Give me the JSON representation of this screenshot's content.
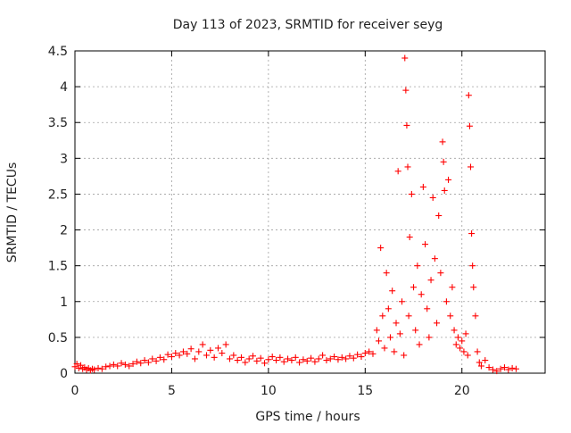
{
  "chart_data": {
    "type": "scatter",
    "title": "Day 113 of 2023, SRMTID for receiver seyg",
    "xlabel": "GPS time / hours",
    "ylabel": "SRMTID / TECUs",
    "xlim": [
      0,
      24.3
    ],
    "ylim": [
      0,
      4.5
    ],
    "grid": true,
    "marker": "+",
    "marker_color": "#ff0000",
    "xticks": [
      0,
      5,
      10,
      15,
      20
    ],
    "xtick_labels": [
      "0",
      "5",
      "10",
      "15",
      "20"
    ],
    "yticks": [
      0,
      0.5,
      1,
      1.5,
      2,
      2.5,
      3,
      3.5,
      4,
      4.5
    ],
    "ytick_labels": [
      "0",
      "0.5",
      "1",
      "1.5",
      "2",
      "2.5",
      "3",
      "3.5",
      "4",
      "4.5"
    ],
    "series": [
      {
        "name": "SRMTID",
        "points": [
          [
            0.0,
            0.09
          ],
          [
            0.1,
            0.13
          ],
          [
            0.2,
            0.07
          ],
          [
            0.3,
            0.11
          ],
          [
            0.4,
            0.06
          ],
          [
            0.5,
            0.08
          ],
          [
            0.6,
            0.05
          ],
          [
            0.7,
            0.07
          ],
          [
            0.8,
            0.04
          ],
          [
            0.9,
            0.06
          ],
          [
            1.0,
            0.05
          ],
          [
            1.2,
            0.07
          ],
          [
            1.4,
            0.06
          ],
          [
            1.6,
            0.09
          ],
          [
            1.8,
            0.1
          ],
          [
            2.0,
            0.12
          ],
          [
            2.2,
            0.1
          ],
          [
            2.4,
            0.14
          ],
          [
            2.6,
            0.12
          ],
          [
            2.8,
            0.1
          ],
          [
            3.0,
            0.13
          ],
          [
            3.2,
            0.16
          ],
          [
            3.4,
            0.14
          ],
          [
            3.6,
            0.18
          ],
          [
            3.8,
            0.15
          ],
          [
            4.0,
            0.2
          ],
          [
            4.2,
            0.17
          ],
          [
            4.4,
            0.22
          ],
          [
            4.6,
            0.19
          ],
          [
            4.8,
            0.26
          ],
          [
            5.0,
            0.23
          ],
          [
            5.2,
            0.28
          ],
          [
            5.4,
            0.25
          ],
          [
            5.6,
            0.3
          ],
          [
            5.8,
            0.27
          ],
          [
            6.0,
            0.34
          ],
          [
            6.2,
            0.2
          ],
          [
            6.4,
            0.3
          ],
          [
            6.6,
            0.4
          ],
          [
            6.8,
            0.25
          ],
          [
            7.0,
            0.32
          ],
          [
            7.2,
            0.22
          ],
          [
            7.4,
            0.35
          ],
          [
            7.6,
            0.28
          ],
          [
            7.8,
            0.4
          ],
          [
            8.0,
            0.2
          ],
          [
            8.2,
            0.25
          ],
          [
            8.4,
            0.18
          ],
          [
            8.6,
            0.22
          ],
          [
            8.8,
            0.15
          ],
          [
            9.0,
            0.2
          ],
          [
            9.2,
            0.24
          ],
          [
            9.4,
            0.17
          ],
          [
            9.6,
            0.21
          ],
          [
            9.8,
            0.14
          ],
          [
            10.0,
            0.19
          ],
          [
            10.2,
            0.23
          ],
          [
            10.4,
            0.18
          ],
          [
            10.6,
            0.22
          ],
          [
            10.8,
            0.16
          ],
          [
            11.0,
            0.2
          ],
          [
            11.2,
            0.18
          ],
          [
            11.4,
            0.22
          ],
          [
            11.6,
            0.15
          ],
          [
            11.8,
            0.19
          ],
          [
            12.0,
            0.17
          ],
          [
            12.2,
            0.21
          ],
          [
            12.4,
            0.16
          ],
          [
            12.6,
            0.2
          ],
          [
            12.8,
            0.25
          ],
          [
            13.0,
            0.18
          ],
          [
            13.2,
            0.2
          ],
          [
            13.4,
            0.23
          ],
          [
            13.6,
            0.19
          ],
          [
            13.8,
            0.22
          ],
          [
            14.0,
            0.2
          ],
          [
            14.2,
            0.24
          ],
          [
            14.4,
            0.21
          ],
          [
            14.6,
            0.26
          ],
          [
            14.8,
            0.23
          ],
          [
            15.0,
            0.28
          ],
          [
            15.2,
            0.3
          ],
          [
            15.4,
            0.27
          ],
          [
            15.6,
            0.6
          ],
          [
            15.7,
            0.45
          ],
          [
            15.8,
            1.75
          ],
          [
            15.9,
            0.8
          ],
          [
            16.0,
            0.35
          ],
          [
            16.1,
            1.4
          ],
          [
            16.2,
            0.9
          ],
          [
            16.3,
            0.5
          ],
          [
            16.4,
            1.15
          ],
          [
            16.5,
            0.3
          ],
          [
            16.6,
            0.7
          ],
          [
            16.7,
            2.82
          ],
          [
            16.8,
            0.55
          ],
          [
            16.9,
            1.0
          ],
          [
            17.0,
            0.25
          ],
          [
            17.05,
            4.4
          ],
          [
            17.1,
            3.95
          ],
          [
            17.15,
            3.46
          ],
          [
            17.2,
            2.88
          ],
          [
            17.25,
            0.8
          ],
          [
            17.3,
            1.9
          ],
          [
            17.4,
            2.5
          ],
          [
            17.5,
            1.2
          ],
          [
            17.6,
            0.6
          ],
          [
            17.7,
            1.5
          ],
          [
            17.8,
            0.4
          ],
          [
            17.9,
            1.1
          ],
          [
            18.0,
            2.6
          ],
          [
            18.1,
            1.8
          ],
          [
            18.2,
            0.9
          ],
          [
            18.3,
            0.5
          ],
          [
            18.4,
            1.3
          ],
          [
            18.5,
            2.45
          ],
          [
            18.6,
            1.6
          ],
          [
            18.7,
            0.7
          ],
          [
            18.8,
            2.2
          ],
          [
            18.9,
            1.4
          ],
          [
            19.0,
            3.23
          ],
          [
            19.05,
            2.95
          ],
          [
            19.1,
            2.55
          ],
          [
            19.2,
            1.0
          ],
          [
            19.3,
            2.7
          ],
          [
            19.4,
            0.8
          ],
          [
            19.5,
            1.2
          ],
          [
            19.6,
            0.6
          ],
          [
            19.7,
            0.4
          ],
          [
            19.8,
            0.5
          ],
          [
            19.9,
            0.35
          ],
          [
            20.0,
            0.45
          ],
          [
            20.1,
            0.3
          ],
          [
            20.2,
            0.55
          ],
          [
            20.3,
            0.25
          ],
          [
            20.35,
            3.88
          ],
          [
            20.4,
            3.45
          ],
          [
            20.45,
            2.88
          ],
          [
            20.5,
            1.95
          ],
          [
            20.55,
            1.5
          ],
          [
            20.6,
            1.2
          ],
          [
            20.7,
            0.8
          ],
          [
            20.8,
            0.3
          ],
          [
            20.9,
            0.15
          ],
          [
            21.0,
            0.1
          ],
          [
            21.2,
            0.18
          ],
          [
            21.4,
            0.08
          ],
          [
            21.6,
            0.05
          ],
          [
            21.8,
            0.03
          ],
          [
            22.0,
            0.06
          ],
          [
            22.2,
            0.08
          ],
          [
            22.4,
            0.05
          ],
          [
            22.6,
            0.07
          ],
          [
            22.8,
            0.06
          ]
        ]
      }
    ]
  }
}
